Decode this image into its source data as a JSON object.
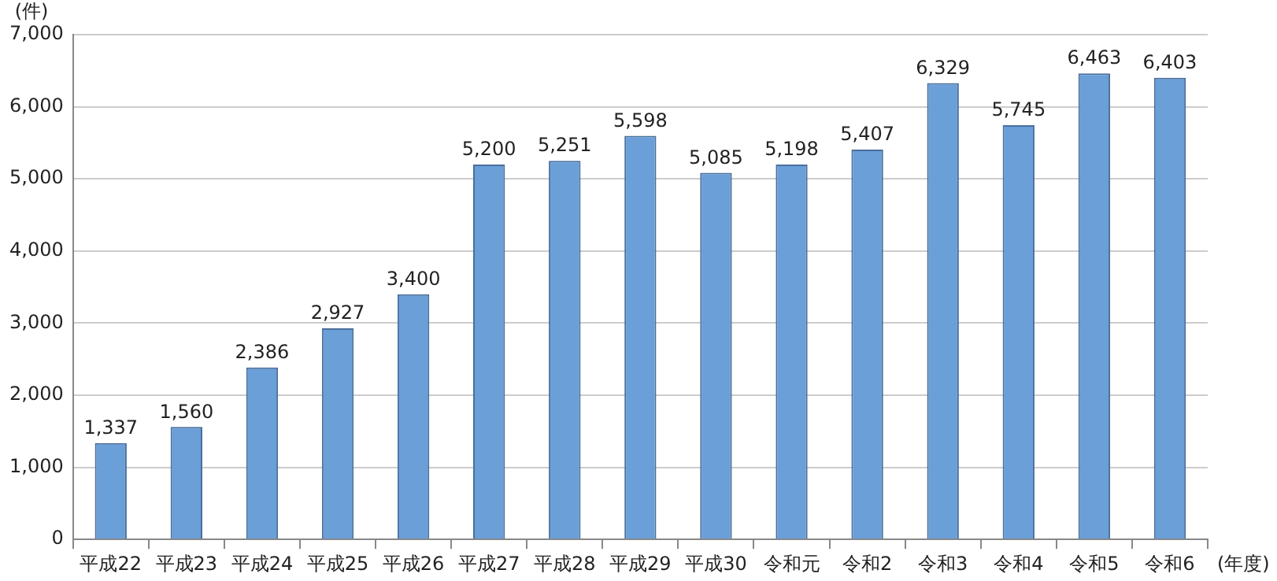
{
  "chart_data": {
    "type": "bar",
    "ylabel": "(件)",
    "xlabel": "(年度)",
    "categories": [
      "平成22",
      "平成23",
      "平成24",
      "平成25",
      "平成26",
      "平成27",
      "平成28",
      "平成29",
      "平成30",
      "令和元",
      "令和2",
      "令和3",
      "令和4",
      "令和5",
      "令和6"
    ],
    "values": [
      1337,
      1560,
      2386,
      2927,
      3400,
      5200,
      5251,
      5598,
      5085,
      5198,
      5407,
      6329,
      5745,
      6463,
      6403
    ],
    "value_labels": [
      "1,337",
      "1,560",
      "2,386",
      "2,927",
      "3,400",
      "5,200",
      "5,251",
      "5,598",
      "5,085",
      "5,198",
      "5,407",
      "6,329",
      "5,745",
      "6,463",
      "6,403"
    ],
    "color": "#6a9fd8",
    "ylim": [
      0,
      7000
    ],
    "yticks": [
      0,
      {
        "value": 1000,
        "label": "1,000"
      },
      {
        "value": 2000,
        "label": "2,000"
      },
      {
        "value": 3000,
        "label": "3,000"
      },
      {
        "value": 4000,
        "label": "4,000"
      },
      {
        "value": 5000,
        "label": "5,000"
      },
      {
        "value": 6000,
        "label": "6,000"
      },
      {
        "value": 7000,
        "label": "7,000"
      }
    ],
    "grid": "y"
  }
}
